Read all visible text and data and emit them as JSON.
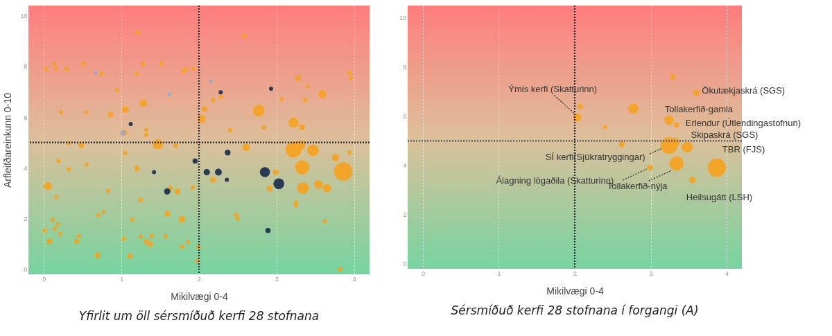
{
  "chart_data": [
    {
      "type": "bubble",
      "title": "Yfirlit um öll sérsmíðuð kerfi 28 stofnana",
      "xlabel": "Mikilvægi 0-4",
      "ylabel": "Arfleifðareinkunn 0-10",
      "xlim": [
        -0.2,
        4.2
      ],
      "ylim": [
        -0.2,
        10.4
      ],
      "xticks": [
        0,
        1,
        2,
        3,
        4
      ],
      "yticks": [
        0,
        2,
        4,
        6,
        8,
        10
      ],
      "grid": "x",
      "marker": "circle",
      "ref_lines": [
        {
          "axis": "x",
          "value": 2,
          "color": "#222233",
          "line_style": "dotted"
        },
        {
          "axis": "y",
          "value": 5,
          "color": "#222233",
          "line_style": "dotted"
        }
      ],
      "series": [
        {
          "color": "#f5a31f",
          "x": [
            1.21,
            0.03,
            0.13,
            0.16,
            0.29,
            0.51,
            0.74,
            1.2,
            1.28,
            1.51,
            1.8,
            1.83,
            1.93,
            0.94,
            0.22,
            0.55,
            0.86,
            1.05,
            1.28,
            1.32,
            1.32,
            1.04,
            1.47,
            0.32,
            0.48,
            1.7,
            2.59,
            2.18,
            2.28,
            3.07,
            3.37,
            3.4,
            3.28,
            3.59,
            3.94,
            3.96,
            2.07,
            2.03,
            2.77,
            2.84,
            2.4,
            3.22,
            3.33,
            3.22,
            3.31,
            3.47,
            2.61,
            2.18,
            2.99,
            2.91,
            3.33,
            3.76,
            3.86,
            3.34,
            3.54,
            3.65,
            3.94,
            3.25,
            3.25,
            3.62,
            2.48,
            2.5,
            1.92,
            1.86,
            1.99,
            1.98,
            3.82,
            1.05,
            0.19,
            0.32,
            0.55,
            1.2,
            1.2,
            0.05,
            0.83,
            1.63,
            1.72,
            1.25,
            0.16,
            0.7,
            0.77,
            1.59,
            1.78,
            1.14,
            0.11,
            0.18,
            0.01,
            0.14,
            0.21,
            0.45,
            0.07,
            0.42,
            1.03,
            1.25,
            1.39,
            1.32,
            1.37,
            1.57,
            1.78,
            0.69,
            1.11
          ],
          "values": [
            9.34,
            7.9,
            8.1,
            7.9,
            7.9,
            8.1,
            7.7,
            7.7,
            8.1,
            8.1,
            7.8,
            7.9,
            7.9,
            7.07,
            6.2,
            6.2,
            6.1,
            6.3,
            6.55,
            5.5,
            5.3,
            5.38,
            4.93,
            4.98,
            4.9,
            4.88,
            9.2,
            6.67,
            6.8,
            6.7,
            6.67,
            7.2,
            7.53,
            6.9,
            7.75,
            7.55,
            6.33,
            5.92,
            6.25,
            5.6,
            5.48,
            5.78,
            5.6,
            4.72,
            4.9,
            4.69,
            4.81,
            3.53,
            3.83,
            3.18,
            4.02,
            4.4,
            3.86,
            3.2,
            3.34,
            3.2,
            4.6,
            2.63,
            2.52,
            1.89,
            2.14,
            2,
            3.23,
            1.07,
            0.88,
            0.33,
            0,
            4.58,
            4.27,
            3.94,
            4.13,
            4,
            3.93,
            3.28,
            3.1,
            3.2,
            3.07,
            2.74,
            2.85,
            2.14,
            2.27,
            2.19,
            1.97,
            1.95,
            1.95,
            1.78,
            1.53,
            1.6,
            1.4,
            1.31,
            1.1,
            1.1,
            1.2,
            1.29,
            1.31,
            1.1,
            0.99,
            1.29,
            0.88,
            0.55,
            0.52
          ],
          "sizes": [
            0.05,
            0.05,
            0.05,
            0.05,
            0.05,
            0.05,
            0.05,
            0.05,
            0.05,
            0.05,
            0.05,
            0.05,
            0.05,
            0.05,
            0.05,
            0.05,
            0.09,
            0.13,
            0.16,
            0.05,
            0.05,
            0.09,
            0.3,
            0.06,
            0.09,
            0.06,
            0.05,
            0.05,
            0.05,
            0.05,
            0.05,
            0.05,
            0.09,
            0.2,
            0.05,
            0.05,
            0.09,
            0.2,
            0.4,
            0.06,
            0.06,
            0.3,
            0.09,
            0.75,
            0.28,
            0.4,
            0.16,
            0.09,
            0.09,
            0.1,
            0.6,
            0.16,
            1,
            0.4,
            0.22,
            0.2,
            0.05,
            0.05,
            0.05,
            0.05,
            0.05,
            0.05,
            0.05,
            0.05,
            0.05,
            0.05,
            0.05,
            0.05,
            0.05,
            0.05,
            0.05,
            0.06,
            0.05,
            0.2,
            0.05,
            0.06,
            0.1,
            0.07,
            0.05,
            0.05,
            0.05,
            0.1,
            0.12,
            0.05,
            0.05,
            0.05,
            0.05,
            0.05,
            0.05,
            0.05,
            0.09,
            0.07,
            0.05,
            0.05,
            0.05,
            0.07,
            0.1,
            0.05,
            0.05,
            0.1,
            0.08
          ]
        },
        {
          "color": "#1c2f4d",
          "x": [
            1.12,
            2.28,
            2.93,
            2.37,
            1.95,
            2.1,
            2.25,
            2.36,
            2.85,
            3.03,
            2.89,
            1.42,
            1.59
          ],
          "values": [
            5.73,
            6.98,
            7.12,
            4.6,
            4.27,
            3.83,
            3.83,
            3.53,
            3.83,
            3.37,
            1.53,
            3.83,
            3.07
          ],
          "sizes": [
            0.05,
            0.05,
            0.05,
            0.1,
            0.08,
            0.12,
            0.14,
            0.05,
            0.3,
            0.35,
            0.08,
            0.05,
            0.12
          ]
        },
        {
          "color": "#a7a7bb",
          "x": [
            0.67,
            1.62,
            2.15,
            1.02
          ],
          "values": [
            7.75,
            6.9,
            7.4,
            5.37
          ],
          "sizes": [
            0.05,
            0.05,
            0.05,
            0.1
          ]
        }
      ]
    },
    {
      "type": "bubble",
      "title": "Sérsmíðuð kerfi 28 stofnana í forgangi (A)",
      "xlabel": "Mikilvægi 0-4",
      "xlim": [
        -0.2,
        4.2
      ],
      "ylim": [
        -0.2,
        10.5
      ],
      "xticks": [
        0,
        1,
        2,
        3,
        4
      ],
      "yticks": [
        0,
        2,
        4,
        6,
        8,
        10
      ],
      "grid": "x",
      "marker": "circle",
      "ref_lines": [
        {
          "axis": "x",
          "value": 2,
          "color": "#222233",
          "line_style": "dotted"
        },
        {
          "axis": "y",
          "value": 5,
          "color": "#555566",
          "line_style": "dotted"
        }
      ],
      "annotations": [
        {
          "text": "Ýmis kerfi (Skatturinn)",
          "x": 2.03,
          "y": 5.95
        },
        {
          "text": "Ökutækjaskrá (SGS)",
          "x": 3.6,
          "y": 6.95
        },
        {
          "text": "Tollakerfið-gamla",
          "x": 3.24,
          "y": 5.84
        },
        {
          "text": "Erlendur (Útlendingastofnun)",
          "x": 3.34,
          "y": 5.64
        },
        {
          "text": "Skipaskrá (SGS)",
          "x": 3.32,
          "y": 4.94
        },
        {
          "text": "TBR (FJS)",
          "x": 3.87,
          "y": 3.91
        },
        {
          "text": "SÍ kerfi(Sjúkratryggingar)",
          "x": 3.24,
          "y": 4.81
        },
        {
          "text": "Álagning lögaðila (Skatturinn)",
          "x": 2.99,
          "y": 3.91
        },
        {
          "text": "Tollakerfið-nýja",
          "x": 3.34,
          "y": 4.08
        },
        {
          "text": "Heilsugátt (LSH)",
          "x": 3.55,
          "y": 3.41
        }
      ],
      "series": [
        {
          "color": "#f5a31f",
          "x": [
            3.29,
            3.6,
            2.77,
            3.24,
            3.34,
            2.4,
            2.62,
            3.24,
            3.32,
            3.48,
            3.34,
            3.87,
            2.99,
            3.55,
            2.03,
            2.07
          ],
          "values": [
            7.6,
            6.95,
            6.31,
            5.84,
            5.64,
            5.56,
            4.86,
            4.81,
            4.94,
            4.75,
            4.08,
            3.91,
            3.91,
            3.41,
            5.95,
            6.4
          ],
          "sizes": [
            0.08,
            0.12,
            0.3,
            0.25,
            0.08,
            0.05,
            0.1,
            0.85,
            0.25,
            0.35,
            0.6,
            1,
            0.08,
            0.12,
            0.2,
            0.08
          ]
        }
      ]
    }
  ]
}
